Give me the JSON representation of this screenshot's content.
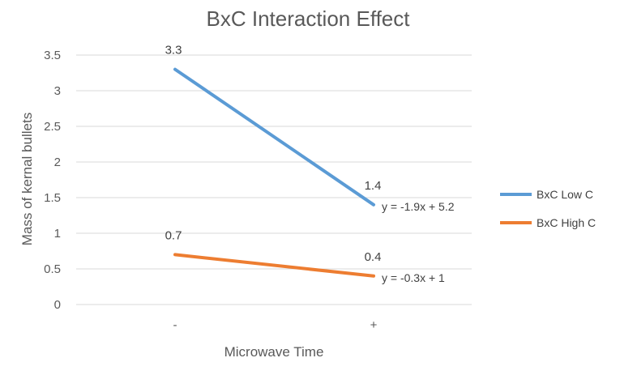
{
  "chart_data": {
    "type": "line",
    "title": "BxC Interaction Effect",
    "xlabel": "Microwave Time",
    "ylabel": "Mass of kernal bullets",
    "categories": [
      "-",
      "+"
    ],
    "ylim": [
      0,
      3.5
    ],
    "yticks": [
      "0",
      "0.5",
      "1",
      "1.5",
      "2",
      "2.5",
      "3",
      "3.5"
    ],
    "grid": true,
    "legend_position": "right",
    "series": [
      {
        "name": "BxC Low C",
        "values": [
          3.3,
          1.4
        ],
        "labels": [
          "3.3",
          "1.4"
        ],
        "color": "#5b9bd5",
        "trendline": "y = -1.9x + 5.2"
      },
      {
        "name": "BxC High C",
        "values": [
          0.7,
          0.4
        ],
        "labels": [
          "0.7",
          "0.4"
        ],
        "color": "#ed7d31",
        "trendline": "y = -0.3x + 1"
      }
    ]
  }
}
